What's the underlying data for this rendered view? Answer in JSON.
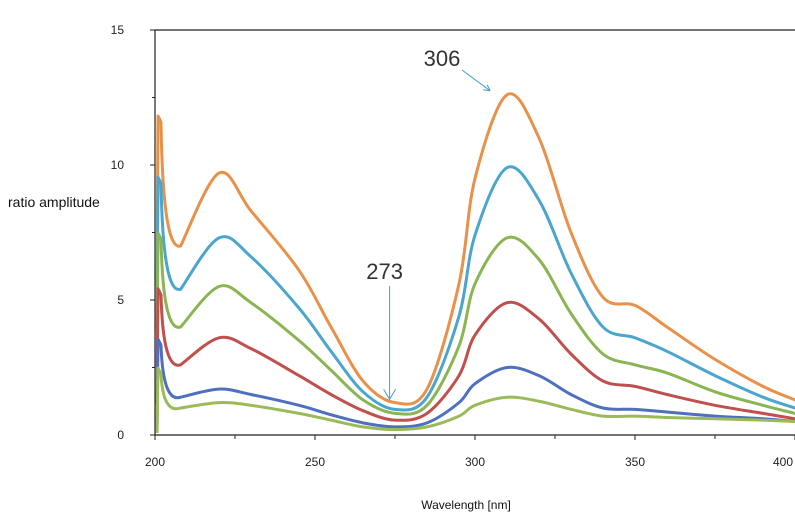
{
  "chart_data": {
    "type": "line",
    "title": "",
    "xlabel": "Wavelength [nm]",
    "ylabel": "ratio amplitude",
    "xlim": [
      200,
      400
    ],
    "ylim": [
      0,
      15
    ],
    "x_ticks": [
      "200",
      "250",
      "300",
      "350",
      "400"
    ],
    "y_ticks": [
      "0",
      "5",
      "10",
      "15"
    ],
    "grid": false,
    "legend": "none",
    "annotations": [
      {
        "text": "306",
        "x": 306,
        "y": 12.6,
        "color": "#3e9fd0"
      },
      {
        "text": "273",
        "x": 273,
        "y": 1.25,
        "color": "#3e9fd0"
      }
    ],
    "x": [
      208,
      220,
      230,
      245,
      255,
      265,
      275,
      285,
      295,
      300,
      310,
      320,
      330,
      340,
      350,
      360,
      375,
      390,
      400
    ],
    "series": [
      {
        "color": "#e8914a",
        "values": [
          7.0,
          9.7,
          8.3,
          6.1,
          4.0,
          2.0,
          1.2,
          1.7,
          5.6,
          9.5,
          12.6,
          11.0,
          7.5,
          5.1,
          4.8,
          4.0,
          2.8,
          1.8,
          1.3
        ]
      },
      {
        "color": "#4aa6cc",
        "values": [
          5.4,
          7.3,
          6.6,
          4.7,
          3.1,
          1.6,
          0.95,
          1.4,
          4.4,
          7.4,
          9.9,
          8.7,
          6.0,
          4.0,
          3.6,
          3.1,
          2.2,
          1.4,
          1.0
        ]
      },
      {
        "color": "#8ab552",
        "values": [
          4.0,
          5.5,
          4.9,
          3.5,
          2.4,
          1.3,
          0.8,
          1.1,
          3.3,
          5.6,
          7.3,
          6.5,
          4.5,
          3.0,
          2.6,
          2.3,
          1.6,
          1.1,
          0.8
        ]
      },
      {
        "color": "#c0504d",
        "values": [
          2.6,
          3.6,
          3.2,
          2.2,
          1.5,
          0.9,
          0.55,
          0.8,
          2.2,
          3.7,
          4.9,
          4.3,
          3.0,
          2.0,
          1.8,
          1.5,
          1.1,
          0.8,
          0.6
        ]
      },
      {
        "color": "#4f6fbf",
        "values": [
          1.4,
          1.7,
          1.5,
          1.1,
          0.75,
          0.45,
          0.3,
          0.45,
          1.2,
          1.9,
          2.5,
          2.2,
          1.5,
          1.0,
          0.95,
          0.85,
          0.7,
          0.6,
          0.5
        ]
      },
      {
        "color": "#9bbb59",
        "values": [
          1.0,
          1.2,
          1.1,
          0.8,
          0.55,
          0.3,
          0.2,
          0.3,
          0.7,
          1.1,
          1.4,
          1.25,
          0.95,
          0.7,
          0.7,
          0.65,
          0.6,
          0.55,
          0.5
        ]
      }
    ]
  }
}
